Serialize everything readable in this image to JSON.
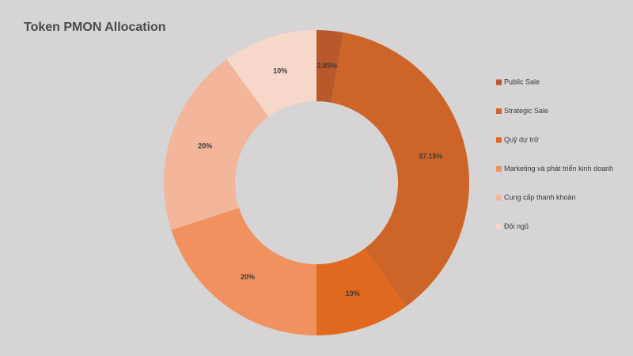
{
  "chart_data": {
    "type": "donut",
    "title": "Token PMON Allocation",
    "categories": [
      "Public Sale",
      "Strategic Sale",
      "Quỹ dự trữ",
      "Marketing và phát triển kinh doanh",
      "Cung cấp thanh khoản",
      "Đội ngũ"
    ],
    "values": [
      2.85,
      37.15,
      10,
      20,
      20,
      10
    ],
    "value_labels": [
      "2.85%",
      "37.15%",
      "10%",
      "20%",
      "20%",
      "10%"
    ],
    "colors": [
      "#b9582b",
      "#cd6529",
      "#e0691f",
      "#f0915f",
      "#f3b69b",
      "#f7d7ca"
    ],
    "legend": "right"
  }
}
